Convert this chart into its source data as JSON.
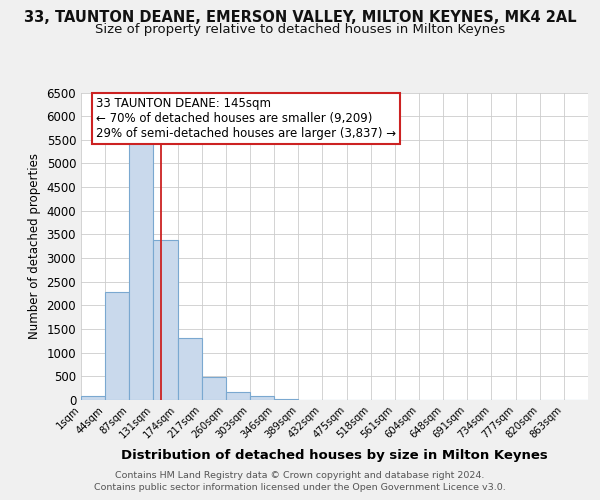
{
  "title": "33, TAUNTON DEANE, EMERSON VALLEY, MILTON KEYNES, MK4 2AL",
  "subtitle": "Size of property relative to detached houses in Milton Keynes",
  "xlabel": "Distribution of detached houses by size in Milton Keynes",
  "ylabel": "Number of detached properties",
  "bar_values": [
    75,
    2280,
    5430,
    3390,
    1310,
    480,
    165,
    75,
    30,
    10,
    0,
    0,
    0,
    0,
    0,
    0,
    0,
    0,
    0,
    0,
    0
  ],
  "bar_labels": [
    "1sqm",
    "44sqm",
    "87sqm",
    "131sqm",
    "174sqm",
    "217sqm",
    "260sqm",
    "303sqm",
    "346sqm",
    "389sqm",
    "432sqm",
    "475sqm",
    "518sqm",
    "561sqm",
    "604sqm",
    "648sqm",
    "691sqm",
    "734sqm",
    "777sqm",
    "820sqm",
    "863sqm"
  ],
  "bar_color": "#c9d9ec",
  "bar_edge_color": "#7aa8d0",
  "marker_x_label": "131sqm",
  "marker_line_color": "#cc2222",
  "annotation_line1": "33 TAUNTON DEANE: 145sqm",
  "annotation_line2": "← 70% of detached houses are smaller (9,209)",
  "annotation_line3": "29% of semi-detached houses are larger (3,837) →",
  "annotation_box_color": "white",
  "annotation_box_edge_color": "#cc2222",
  "ylim": [
    0,
    6500
  ],
  "yticks": [
    0,
    500,
    1000,
    1500,
    2000,
    2500,
    3000,
    3500,
    4000,
    4500,
    5000,
    5500,
    6000,
    6500
  ],
  "background_color": "#f0f0f0",
  "plot_bg_color": "#ffffff",
  "grid_color": "#cccccc",
  "footer_line1": "Contains HM Land Registry data © Crown copyright and database right 2024.",
  "footer_line2": "Contains public sector information licensed under the Open Government Licence v3.0.",
  "bin_width": 43,
  "num_bins": 21,
  "title_fontsize": 10.5,
  "subtitle_fontsize": 9.5,
  "annotation_fontsize": 8.5
}
